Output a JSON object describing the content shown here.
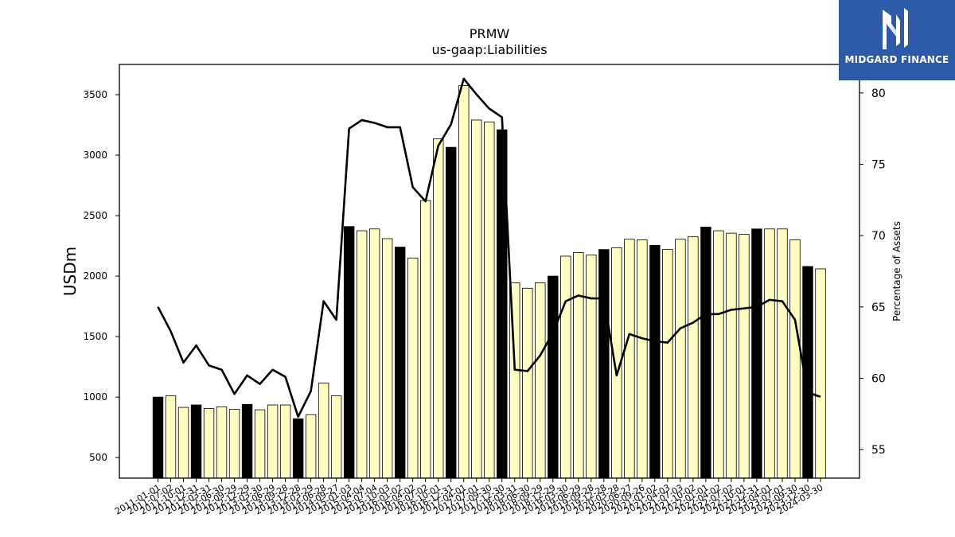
{
  "chart_data": {
    "type": "bar",
    "title": "PRMW",
    "subtitle": "us-gaap:Liabilities",
    "ylabel": "USDm",
    "y2label": "Percentage of Assets",
    "ylim": [
      330,
      3750
    ],
    "y2lim": [
      53,
      82
    ],
    "yticks": [
      500,
      1000,
      1500,
      2000,
      2500,
      3000,
      3500
    ],
    "y2ticks": [
      55,
      60,
      65,
      70,
      75,
      80
    ],
    "grid": false,
    "categories": [
      "2011-01-01",
      "2011-07-02",
      "2011-10-01",
      "2011-12-31",
      "2012-03-31",
      "2012-06-30",
      "2012-09-29",
      "2012-12-29",
      "2013-03-30",
      "2013-06-29",
      "2013-09-28",
      "2013-12-28",
      "2014-03-29",
      "2014-06-28",
      "2014-09-27",
      "2015-01-03",
      "2015-04-04",
      "2015-07-04",
      "2015-10-03",
      "2016-01-02",
      "2016-04-02",
      "2016-07-02",
      "2016-10-01",
      "2016-12-31",
      "2017-04-01",
      "2017-07-01",
      "2017-09-30",
      "2017-12-30",
      "2018-03-31",
      "2018-06-30",
      "2018-09-29",
      "2018-12-29",
      "2019-03-30",
      "2019-06-29",
      "2019-09-28",
      "2019-12-28",
      "2020-03-28",
      "2020-06-27",
      "2020-09-26",
      "2021-01-02",
      "2021-04-03",
      "2021-07-03",
      "2021-10-02",
      "2022-01-01",
      "2022-04-02",
      "2022-07-02",
      "2022-10-01",
      "2022-12-31",
      "2023-04-01",
      "2023-07-01",
      "2023-09-30",
      "2023-12-30",
      "2024-03-30"
    ],
    "series": [
      {
        "type": "bar",
        "values": [
          1000,
          1010,
          915,
          935,
          905,
          920,
          900,
          940,
          895,
          935,
          935,
          820,
          855,
          1115,
          1010,
          2410,
          2375,
          2390,
          2310,
          2240,
          2150,
          2625,
          3135,
          3065,
          3575,
          3290,
          3275,
          3210,
          1945,
          1900,
          1945,
          2000,
          2165,
          2195,
          2175,
          2220,
          2235,
          2305,
          2300,
          2255,
          2220,
          2305,
          2325,
          2405,
          2375,
          2355,
          2345,
          2390,
          2390,
          2390,
          2300,
          2080,
          2060
        ],
        "colors": [
          "#000000",
          "#ffffc0",
          "#ffffc0",
          "#000000",
          "#ffffc0",
          "#ffffc0",
          "#ffffc0",
          "#000000",
          "#ffffc0",
          "#ffffc0",
          "#ffffc0",
          "#000000",
          "#ffffc0",
          "#ffffc0",
          "#ffffc0",
          "#000000",
          "#ffffc0",
          "#ffffc0",
          "#ffffc0",
          "#000000",
          "#ffffc0",
          "#ffffc0",
          "#ffffc0",
          "#000000",
          "#ffffc0",
          "#ffffc0",
          "#ffffc0",
          "#000000",
          "#ffffc0",
          "#ffffc0",
          "#ffffc0",
          "#000000",
          "#ffffc0",
          "#ffffc0",
          "#ffffc0",
          "#000000",
          "#ffffc0",
          "#ffffc0",
          "#ffffc0",
          "#000000",
          "#ffffc0",
          "#ffffc0",
          "#ffffc0",
          "#000000",
          "#ffffc0",
          "#ffffc0",
          "#ffffc0",
          "#000000",
          "#ffffc0",
          "#ffffc0",
          "#ffffc0",
          "#000000",
          "#ffffc0"
        ]
      },
      {
        "type": "line",
        "axis": "right",
        "color": "#000000",
        "values": [
          65.0,
          63.3,
          61.1,
          62.3,
          60.9,
          60.6,
          58.9,
          60.2,
          59.6,
          60.6,
          60.1,
          57.3,
          59.1,
          65.4,
          64.1,
          77.5,
          78.1,
          77.9,
          77.6,
          77.6,
          73.4,
          72.4,
          76.3,
          77.8,
          81.0,
          79.9,
          78.9,
          78.3,
          60.6,
          60.5,
          61.6,
          63.2,
          65.4,
          65.8,
          65.6,
          65.6,
          60.2,
          63.1,
          62.8,
          62.6,
          62.5,
          63.5,
          63.9,
          64.5,
          64.5,
          64.8,
          64.9,
          65.0,
          65.5,
          65.4,
          64.1,
          59.0,
          58.7
        ]
      }
    ]
  },
  "logo": {
    "text": "MIDGARD FINANCE",
    "bg": "#2d5aa8"
  }
}
